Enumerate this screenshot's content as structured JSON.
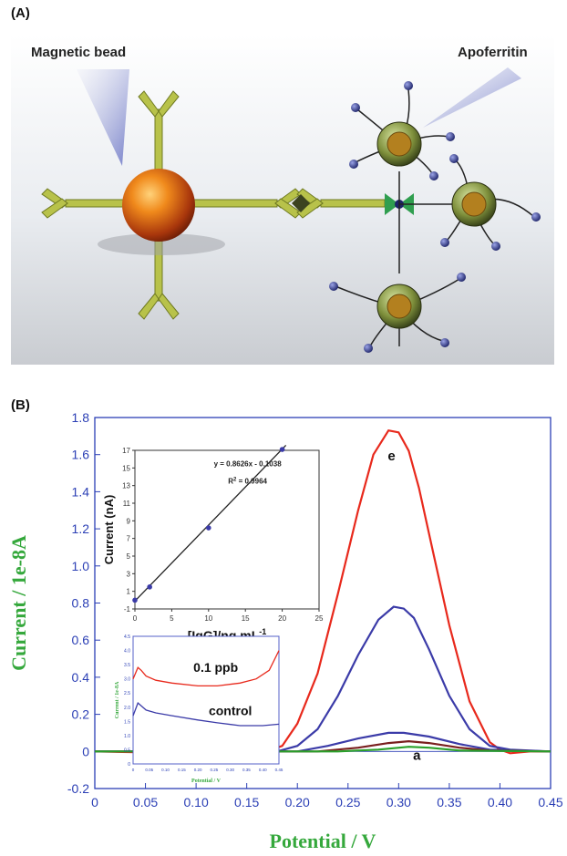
{
  "panel_a": {
    "label": "(A)",
    "magnetic_bead_label": "Magnetic bead",
    "apoferritin_label": "Apoferritin"
  },
  "panel_b": {
    "label": "(B)"
  },
  "chart_data": [
    {
      "type": "line",
      "xlabel": "Potential / V",
      "ylabel": "Current / 1e-8A",
      "xlim": [
        0,
        0.45
      ],
      "ylim": [
        -0.2,
        1.8
      ],
      "xticks": [
        "0",
        "0.05",
        "0.10",
        "0.15",
        "0.20",
        "0.25",
        "0.30",
        "0.35",
        "0.40",
        "0.45"
      ],
      "yticks": [
        "-0.2",
        "0",
        "0.2",
        "0.4",
        "0.6",
        "0.8",
        "1.0",
        "1.2",
        "1.4",
        "1.6",
        "1.8"
      ],
      "annotations": [
        {
          "text": "e",
          "x": 0.293,
          "y": 1.57
        },
        {
          "text": "a",
          "x": 0.318,
          "y": -0.045
        }
      ],
      "series": [
        {
          "color": "#e8291c",
          "x": [
            0,
            0.1,
            0.17,
            0.185,
            0.2,
            0.22,
            0.24,
            0.26,
            0.275,
            0.29,
            0.3,
            0.31,
            0.32,
            0.335,
            0.35,
            0.37,
            0.39,
            0.4,
            0.41,
            0.43,
            0.45
          ],
          "y": [
            0,
            -0.01,
            0,
            0.03,
            0.15,
            0.42,
            0.85,
            1.3,
            1.6,
            1.73,
            1.72,
            1.62,
            1.42,
            1.05,
            0.68,
            0.27,
            0.05,
            0.01,
            -0.01,
            0,
            0
          ]
        },
        {
          "color": "#3b3ba8",
          "x": [
            0,
            0.1,
            0.18,
            0.2,
            0.22,
            0.24,
            0.26,
            0.28,
            0.295,
            0.305,
            0.315,
            0.33,
            0.35,
            0.37,
            0.39,
            0.41,
            0.45
          ],
          "y": [
            0,
            0,
            0,
            0.03,
            0.12,
            0.3,
            0.52,
            0.71,
            0.78,
            0.77,
            0.72,
            0.55,
            0.3,
            0.12,
            0.03,
            0.01,
            0
          ]
        },
        {
          "color": "#3b3ba8",
          "x": [
            0,
            0.2,
            0.23,
            0.26,
            0.29,
            0.305,
            0.33,
            0.36,
            0.39,
            0.45
          ],
          "y": [
            0,
            0,
            0.03,
            0.07,
            0.1,
            0.1,
            0.08,
            0.04,
            0.01,
            0
          ]
        },
        {
          "color": "#7a1f1f",
          "x": [
            0,
            0.22,
            0.26,
            0.29,
            0.31,
            0.33,
            0.36,
            0.39,
            0.45
          ],
          "y": [
            0,
            0,
            0.02,
            0.045,
            0.055,
            0.045,
            0.02,
            0.005,
            0
          ]
        },
        {
          "color": "#2aa02a",
          "x": [
            0,
            0.24,
            0.28,
            0.31,
            0.33,
            0.36,
            0.45
          ],
          "y": [
            0,
            0,
            0.01,
            0.025,
            0.02,
            0.005,
            0
          ]
        }
      ]
    },
    {
      "type": "scatter",
      "xlabel": "[IgG]/ng mL",
      "xlabel_sup": "-1",
      "ylabel": "Current (nA)",
      "xlim": [
        0,
        25
      ],
      "ylim": [
        -1,
        17
      ],
      "xticks": [
        "0",
        "5",
        "10",
        "15",
        "20",
        "25"
      ],
      "yticks": [
        "-1",
        "1",
        "3",
        "5",
        "7",
        "9",
        "11",
        "13",
        "15",
        "17"
      ],
      "equation": "y = 0.8626x - 0.1038",
      "r2_prefix": "R",
      "r2_sup": "2",
      "r2_value": " = 0.9964",
      "points": {
        "x": [
          0,
          2,
          10,
          20
        ],
        "y": [
          0.0,
          1.5,
          8.2,
          17.1
        ]
      },
      "fit": {
        "slope": 0.8626,
        "intercept": -0.1038
      }
    },
    {
      "type": "line",
      "xlabel": "Potential / V",
      "ylabel": "Current / 1e-8A",
      "xlim": [
        0,
        0.45
      ],
      "xticks": [
        "0",
        "0.05",
        "0.10",
        "0.15",
        "0.20",
        "0.25",
        "0.30",
        "0.35",
        "0.40",
        "0.45"
      ],
      "yticks": [
        "4.5",
        "4.0",
        "3.5",
        "3.0",
        "2.5",
        "2.0",
        "1.5",
        "1.0",
        "0.5",
        "0"
      ],
      "ylim": [
        0,
        4.5
      ],
      "labels": [
        "0.1 ppb",
        "control"
      ],
      "series": [
        {
          "name": "0.1 ppb",
          "color": "#e8291c",
          "x": [
            0,
            0.015,
            0.025,
            0.04,
            0.07,
            0.12,
            0.2,
            0.26,
            0.33,
            0.38,
            0.42,
            0.45
          ],
          "y": [
            3.0,
            3.4,
            3.3,
            3.1,
            2.95,
            2.85,
            2.75,
            2.75,
            2.85,
            3.0,
            3.3,
            4.0
          ]
        },
        {
          "name": "control",
          "color": "#3b3ba8",
          "x": [
            0,
            0.015,
            0.025,
            0.04,
            0.07,
            0.12,
            0.2,
            0.26,
            0.33,
            0.4,
            0.45
          ],
          "y": [
            1.7,
            2.15,
            2.05,
            1.9,
            1.8,
            1.7,
            1.55,
            1.45,
            1.35,
            1.35,
            1.4
          ]
        }
      ]
    }
  ]
}
